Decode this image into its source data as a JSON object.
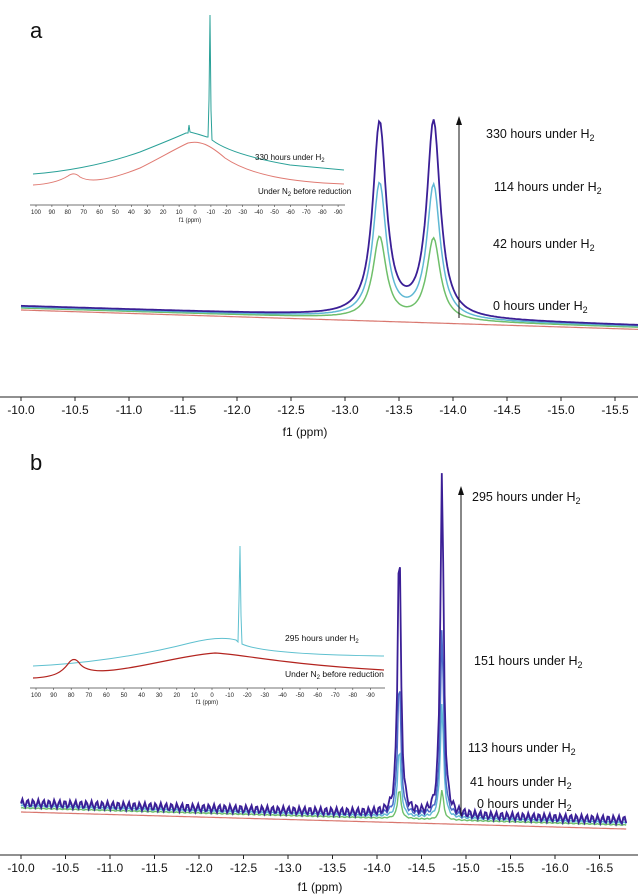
{
  "panel_a": {
    "letter": "a",
    "xlabel": "f1 (ppm)",
    "xticks": [
      -10.0,
      -10.5,
      -11.0,
      -11.5,
      -12.0,
      -12.5,
      -13.0,
      -13.5,
      -14.0,
      -14.5,
      -15.0,
      -15.5
    ],
    "xtick_labels": [
      "-10.0",
      "-10.5",
      "-11.0",
      "-11.5",
      "-12.0",
      "-12.5",
      "-13.0",
      "-13.5",
      "-14.0",
      "-14.5",
      "-15.0",
      "-15.5"
    ],
    "annotations": [
      {
        "text": "330 hours under H",
        "sub": "2"
      },
      {
        "text": "114 hours under H",
        "sub": "2"
      },
      {
        "text": "42 hours under H",
        "sub": "2"
      },
      {
        "text": "0 hours under H",
        "sub": "2"
      }
    ],
    "inset": {
      "xlabel": "f1 (ppm)",
      "xtick_labels": [
        "100",
        "90",
        "80",
        "70",
        "60",
        "50",
        "40",
        "30",
        "20",
        "10",
        "0",
        "-10",
        "-20",
        "-30",
        "-40",
        "-50",
        "-60",
        "-70",
        "-80",
        "-90"
      ],
      "label_top": {
        "text": "330 hours under H",
        "sub": "2"
      },
      "label_bottom": {
        "pre": "Under N",
        "sub": "2",
        "post": " before reduction"
      }
    }
  },
  "panel_b": {
    "letter": "b",
    "xlabel": "f1 (ppm)",
    "xtick_labels": [
      "-10.0",
      "-10.5",
      "-11.0",
      "-11.5",
      "-12.0",
      "-12.5",
      "-13.0",
      "-13.5",
      "-14.0",
      "-14.5",
      "-15.0",
      "-15.5",
      "-16.0",
      "-16.5"
    ],
    "annotations": [
      {
        "text": "295 hours under H",
        "sub": "2"
      },
      {
        "text": "151 hours under H",
        "sub": "2"
      },
      {
        "text": "113 hours under H",
        "sub": "2"
      },
      {
        "text": "41 hours under H",
        "sub": "2"
      },
      {
        "text": "0 hours under H",
        "sub": "2"
      }
    ],
    "inset": {
      "xlabel": "f1 (ppm)",
      "xtick_labels": [
        "100",
        "90",
        "80",
        "70",
        "60",
        "50",
        "40",
        "30",
        "20",
        "10",
        "0",
        "-10",
        "-20",
        "-30",
        "-40",
        "-50",
        "-60",
        "-70",
        "-80",
        "-90"
      ],
      "label_top": {
        "text": "295 hours under H",
        "sub": "2"
      },
      "label_bottom": {
        "pre": "Under N",
        "sub": "2",
        "post": " before reduction"
      }
    }
  },
  "chart_data": [
    {
      "type": "line",
      "panel": "a",
      "xlabel": "f1 (ppm)",
      "xlim": [
        -10.0,
        -15.9
      ],
      "series": [
        {
          "name": "0 hours under H2",
          "color": "#d9776f",
          "peaks": []
        },
        {
          "name": "42 hours under H2",
          "color": "#6fbf6a",
          "peaks": [
            {
              "x": -13.32,
              "h": 0.55
            },
            {
              "x": -13.82,
              "h": 0.55
            }
          ]
        },
        {
          "name": "114 hours under H2",
          "color": "#5fb8d4",
          "peaks": [
            {
              "x": -13.32,
              "h": 0.9
            },
            {
              "x": -13.82,
              "h": 0.9
            }
          ]
        },
        {
          "name": "330 hours under H2",
          "color": "#3b1f96",
          "peaks": [
            {
              "x": -13.32,
              "h": 1.3
            },
            {
              "x": -13.82,
              "h": 1.32
            }
          ]
        }
      ]
    },
    {
      "type": "line",
      "panel": "b",
      "xlabel": "f1 (ppm)",
      "xlim": [
        -10.0,
        -16.8
      ],
      "series": [
        {
          "name": "0 hours under H2",
          "color": "#d9776f",
          "peaks": []
        },
        {
          "name": "41 hours under H2",
          "color": "#6fbf6a",
          "peaks": [
            {
              "x": -14.25,
              "h": 0.12
            },
            {
              "x": -14.73,
              "h": 0.12
            }
          ]
        },
        {
          "name": "113 hours under H2",
          "color": "#5fb8d4",
          "peaks": [
            {
              "x": -14.25,
              "h": 0.28
            },
            {
              "x": -14.73,
              "h": 0.46
            }
          ]
        },
        {
          "name": "151 hours under H2",
          "color": "#4a6bc8",
          "peaks": [
            {
              "x": -14.25,
              "h": 0.55
            },
            {
              "x": -14.73,
              "h": 0.75
            }
          ]
        },
        {
          "name": "295 hours under H2",
          "color": "#3b1f96",
          "peaks": [
            {
              "x": -14.25,
              "h": 1.1
            },
            {
              "x": -14.73,
              "h": 1.38
            }
          ]
        }
      ]
    }
  ]
}
